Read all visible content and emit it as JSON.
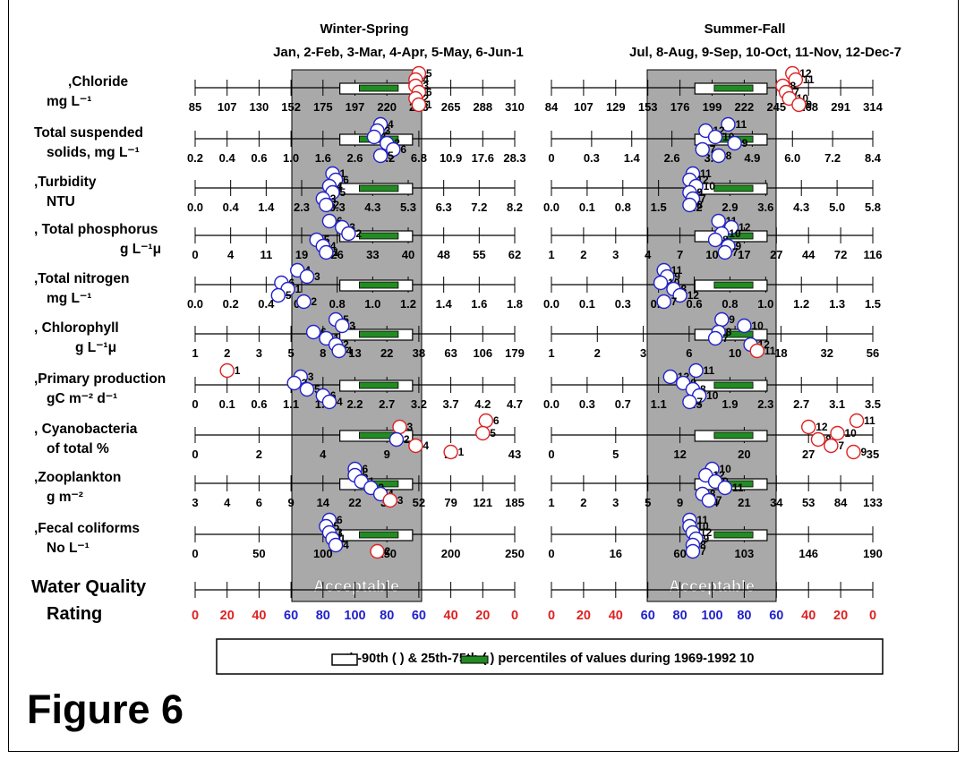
{
  "headers": {
    "left_title": "Winter-Spring",
    "left_months": "Jan, 2-Feb, 3-Mar, 4-Apr, 5-May, 6-Jun-1",
    "right_title": "Summer-Fall",
    "right_months": "Jul, 8-Aug, 9-Sep, 10-Oct, 11-Nov, 12-Dec-7"
  },
  "figure_label": "Figure 6",
  "legend_text": "th-90th (      ) & 25th-75th (      ) percentiles of values during 1969-1992 10",
  "colors": {
    "grey_band": "#a9a9a9",
    "iqr_bar": "#228B22",
    "low_marker": "#2222cc",
    "high_marker": "#dd2222",
    "rating_red": "#dd2222",
    "rating_blue": "#2222cc"
  },
  "chart_data": {
    "type": "box-percentile-scale",
    "rows": [
      {
        "label1": ",Chloride",
        "label2": "mg L⁻¹",
        "left_ticks": [
          "85",
          "107",
          "130",
          "152",
          "175",
          "197",
          "220",
          "243",
          "265",
          "288",
          "310"
        ],
        "right_ticks": [
          "84",
          "107",
          "129",
          "153",
          "176",
          "199",
          "222",
          "245",
          "268",
          "291",
          "314"
        ],
        "left_markers": [
          {
            "m": "5",
            "v": 0.7,
            "c": "red"
          },
          {
            "m": "4",
            "v": 0.69,
            "c": "red"
          },
          {
            "m": "3",
            "v": 0.69,
            "c": "red"
          },
          {
            "m": "6",
            "v": 0.7,
            "c": "red"
          },
          {
            "m": "2",
            "v": 0.69,
            "c": "red"
          },
          {
            "m": "1",
            "v": 0.7,
            "c": "red"
          }
        ],
        "right_markers": [
          {
            "m": "12",
            "v": 0.75,
            "c": "red"
          },
          {
            "m": "11",
            "v": 0.76,
            "c": "red"
          },
          {
            "m": "8",
            "v": 0.72,
            "c": "red"
          },
          {
            "m": "7",
            "v": 0.73,
            "c": "red"
          },
          {
            "m": "10",
            "v": 0.74,
            "c": "red"
          },
          {
            "m": "9",
            "v": 0.77,
            "c": "red"
          }
        ]
      },
      {
        "label1": "Total suspended",
        "label2": "solids, mg L⁻¹",
        "left_ticks": [
          "0.2",
          "0.4",
          "0.6",
          "1.0",
          "1.6",
          "2.6",
          "4.2",
          "6.8",
          "10.9",
          "17.6",
          "28.3"
        ],
        "right_ticks": [
          "0",
          "0.3",
          "1.4",
          "2.6",
          "3.7",
          "4.9",
          "6.0",
          "7.2",
          "8.4"
        ],
        "left_markers": [
          {
            "m": "4",
            "v": 0.58,
            "c": "blue"
          },
          {
            "m": "3",
            "v": 0.57,
            "c": "blue"
          },
          {
            "m": "1",
            "v": 0.56,
            "c": "blue"
          },
          {
            "m": "2",
            "v": 0.6,
            "c": "blue"
          },
          {
            "m": "6",
            "v": 0.62,
            "c": "blue"
          },
          {
            "m": "5",
            "v": 0.58,
            "c": "blue"
          }
        ],
        "right_markers": [
          {
            "m": "11",
            "v": 0.55,
            "c": "blue"
          },
          {
            "m": "12",
            "v": 0.48,
            "c": "blue"
          },
          {
            "m": "10",
            "v": 0.51,
            "c": "blue"
          },
          {
            "m": "9",
            "v": 0.57,
            "c": "blue"
          },
          {
            "m": "7",
            "v": 0.47,
            "c": "blue"
          },
          {
            "m": "8",
            "v": 0.52,
            "c": "blue"
          }
        ]
      },
      {
        "label1": ",Turbidity",
        "label2": "NTU",
        "left_ticks": [
          "0.0",
          "0.4",
          "1.4",
          "2.3",
          "3.3",
          "4.3",
          "5.3",
          "6.3",
          "7.2",
          "8.2"
        ],
        "right_ticks": [
          "0.0",
          "0.1",
          "0.8",
          "1.5",
          "2.2",
          "2.9",
          "3.6",
          "4.3",
          "5.0",
          "5.8"
        ],
        "left_markers": [
          {
            "m": "1",
            "v": 0.43,
            "c": "blue"
          },
          {
            "m": "6",
            "v": 0.44,
            "c": "blue"
          },
          {
            "m": "4",
            "v": 0.42,
            "c": "blue"
          },
          {
            "m": "5",
            "v": 0.43,
            "c": "blue"
          },
          {
            "m": "3",
            "v": 0.4,
            "c": "blue"
          },
          {
            "m": "2",
            "v": 0.41,
            "c": "blue"
          }
        ],
        "right_markers": [
          {
            "m": "11",
            "v": 0.44,
            "c": "blue"
          },
          {
            "m": "12",
            "v": 0.43,
            "c": "blue"
          },
          {
            "m": "10",
            "v": 0.45,
            "c": "blue"
          },
          {
            "m": "9",
            "v": 0.43,
            "c": "blue"
          },
          {
            "m": "7",
            "v": 0.44,
            "c": "blue"
          },
          {
            "m": "8",
            "v": 0.43,
            "c": "blue"
          }
        ]
      },
      {
        "label1": ", Total phosphorus",
        "label2": "g L⁻¹μ",
        "left_ticks": [
          "0",
          "4",
          "11",
          "19",
          "26",
          "33",
          "40",
          "48",
          "55",
          "62"
        ],
        "right_ticks": [
          "1",
          "2",
          "3",
          "4",
          "7",
          "10",
          "17",
          "27",
          "44",
          "72",
          "116"
        ],
        "left_markers": [
          {
            "m": "6",
            "v": 0.42,
            "c": "blue"
          },
          {
            "m": "3",
            "v": 0.46,
            "c": "blue"
          },
          {
            "m": "2",
            "v": 0.48,
            "c": "blue"
          },
          {
            "m": "5",
            "v": 0.38,
            "c": "blue"
          },
          {
            "m": "4",
            "v": 0.4,
            "c": "blue"
          },
          {
            "m": "1",
            "v": 0.41,
            "c": "blue"
          }
        ],
        "right_markers": [
          {
            "m": "11",
            "v": 0.52,
            "c": "blue"
          },
          {
            "m": "12",
            "v": 0.56,
            "c": "blue"
          },
          {
            "m": "10",
            "v": 0.53,
            "c": "blue"
          },
          {
            "m": "8",
            "v": 0.51,
            "c": "blue"
          },
          {
            "m": "9",
            "v": 0.55,
            "c": "blue"
          },
          {
            "m": "7",
            "v": 0.54,
            "c": "blue"
          }
        ]
      },
      {
        "label1": ",Total nitrogen",
        "label2": "mg L⁻¹",
        "left_ticks": [
          "0.0",
          "0.2",
          "0.4",
          "0.6",
          "0.8",
          "1.0",
          "1.2",
          "1.4",
          "1.6",
          "1.8"
        ],
        "right_ticks": [
          "0.0",
          "0.1",
          "0.3",
          "0.4",
          "0.6",
          "0.8",
          "1.0",
          "1.2",
          "1.3",
          "1.5"
        ],
        "left_markers": [
          {
            "m": "4",
            "v": 0.32,
            "c": "blue"
          },
          {
            "m": "3",
            "v": 0.35,
            "c": "blue"
          },
          {
            "m": "6",
            "v": 0.27,
            "c": "blue"
          },
          {
            "m": "1",
            "v": 0.29,
            "c": "blue"
          },
          {
            "m": "5",
            "v": 0.26,
            "c": "blue"
          },
          {
            "m": "2",
            "v": 0.34,
            "c": "blue"
          }
        ],
        "right_markers": [
          {
            "m": "11",
            "v": 0.35,
            "c": "blue"
          },
          {
            "m": "9",
            "v": 0.36,
            "c": "blue"
          },
          {
            "m": "10",
            "v": 0.34,
            "c": "blue"
          },
          {
            "m": "8",
            "v": 0.38,
            "c": "blue"
          },
          {
            "m": "12",
            "v": 0.4,
            "c": "blue"
          },
          {
            "m": "7",
            "v": 0.35,
            "c": "blue"
          }
        ]
      },
      {
        "label1": ", Chlorophyll",
        "label2": "g L⁻¹μ",
        "left_ticks": [
          "1",
          "2",
          "3",
          "5",
          "8",
          "13",
          "22",
          "38",
          "63",
          "106",
          "179"
        ],
        "right_ticks": [
          "1",
          "2",
          "3",
          "6",
          "10",
          "18",
          "32",
          "56"
        ],
        "left_markers": [
          {
            "m": "5",
            "v": 0.44,
            "c": "blue"
          },
          {
            "m": "3",
            "v": 0.46,
            "c": "blue"
          },
          {
            "m": "6",
            "v": 0.37,
            "c": "blue"
          },
          {
            "m": "1",
            "v": 0.41,
            "c": "blue"
          },
          {
            "m": "2",
            "v": 0.44,
            "c": "blue"
          },
          {
            "m": "4",
            "v": 0.45,
            "c": "blue"
          }
        ],
        "right_markers": [
          {
            "m": "9",
            "v": 0.53,
            "c": "blue"
          },
          {
            "m": "10",
            "v": 0.6,
            "c": "blue"
          },
          {
            "m": "8",
            "v": 0.52,
            "c": "blue"
          },
          {
            "m": "7",
            "v": 0.51,
            "c": "blue"
          },
          {
            "m": "12",
            "v": 0.62,
            "c": "blue"
          },
          {
            "m": "11",
            "v": 0.64,
            "c": "red"
          }
        ]
      },
      {
        "label1": ",Primary production",
        "label2": "gC m⁻² d⁻¹",
        "left_ticks": [
          "0",
          "0.1",
          "0.6",
          "1.1",
          "1.6",
          "2.2",
          "2.7",
          "3.2",
          "3.7",
          "4.2",
          "4.7"
        ],
        "right_ticks": [
          "0.0",
          "0.3",
          "0.7",
          "1.1",
          "1.5",
          "1.9",
          "2.3",
          "2.7",
          "3.1",
          "3.5"
        ],
        "left_markers": [
          {
            "m": "1",
            "v": 0.1,
            "c": "red"
          },
          {
            "m": "3",
            "v": 0.33,
            "c": "blue"
          },
          {
            "m": "2",
            "v": 0.31,
            "c": "blue"
          },
          {
            "m": "5",
            "v": 0.35,
            "c": "blue"
          },
          {
            "m": "6",
            "v": 0.4,
            "c": "blue"
          },
          {
            "m": "4",
            "v": 0.42,
            "c": "blue"
          }
        ],
        "right_markers": [
          {
            "m": "11",
            "v": 0.45,
            "c": "blue"
          },
          {
            "m": "12",
            "v": 0.37,
            "c": "blue"
          },
          {
            "m": "9",
            "v": 0.41,
            "c": "blue"
          },
          {
            "m": "8",
            "v": 0.44,
            "c": "blue"
          },
          {
            "m": "10",
            "v": 0.46,
            "c": "blue"
          },
          {
            "m": "7",
            "v": 0.43,
            "c": "blue"
          }
        ]
      },
      {
        "label1": ", Cyanobacteria",
        "label2": "of total  %",
        "left_ticks": [
          "0",
          "2",
          "4",
          "9",
          "20",
          "43"
        ],
        "right_ticks": [
          "0",
          "5",
          "12",
          "20",
          "27",
          "35"
        ],
        "left_markers": [
          {
            "m": "6",
            "v": 0.91,
            "c": "red"
          },
          {
            "m": "3",
            "v": 0.64,
            "c": "red"
          },
          {
            "m": "5",
            "v": 0.9,
            "c": "red"
          },
          {
            "m": "2",
            "v": 0.63,
            "c": "blue"
          },
          {
            "m": "4",
            "v": 0.69,
            "c": "red"
          },
          {
            "m": "1",
            "v": 0.8,
            "c": "red"
          }
        ],
        "right_markers": [
          {
            "m": "11",
            "v": 0.95,
            "c": "red"
          },
          {
            "m": "12",
            "v": 0.8,
            "c": "red"
          },
          {
            "m": "10",
            "v": 0.89,
            "c": "red"
          },
          {
            "m": "8",
            "v": 0.83,
            "c": "red"
          },
          {
            "m": "7",
            "v": 0.87,
            "c": "red"
          },
          {
            "m": "9",
            "v": 0.94,
            "c": "red"
          }
        ]
      },
      {
        "label1": ",Zooplankton",
        "label2": "g m⁻²",
        "left_ticks": [
          "3",
          "4",
          "6",
          "9",
          "14",
          "22",
          "34",
          "52",
          "79",
          "121",
          "185"
        ],
        "right_ticks": [
          "1",
          "2",
          "3",
          "5",
          "9",
          "14",
          "21",
          "34",
          "53",
          "84",
          "133"
        ],
        "left_markers": [
          {
            "m": "6",
            "v": 0.5,
            "c": "blue"
          },
          {
            "m": "5",
            "v": 0.5,
            "c": "blue"
          },
          {
            "m": "1",
            "v": 0.52,
            "c": "blue"
          },
          {
            "m": "2",
            "v": 0.55,
            "c": "blue"
          },
          {
            "m": "4",
            "v": 0.58,
            "c": "blue"
          },
          {
            "m": "3",
            "v": 0.61,
            "c": "red"
          }
        ],
        "right_markers": [
          {
            "m": "10",
            "v": 0.5,
            "c": "blue"
          },
          {
            "m": "12",
            "v": 0.48,
            "c": "blue"
          },
          {
            "m": "9",
            "v": 0.51,
            "c": "blue"
          },
          {
            "m": "11",
            "v": 0.54,
            "c": "blue"
          },
          {
            "m": "8",
            "v": 0.47,
            "c": "blue"
          },
          {
            "m": "7",
            "v": 0.49,
            "c": "blue"
          }
        ]
      },
      {
        "label1": ",Fecal coliforms",
        "label2": "No L⁻¹",
        "left_ticks": [
          "0",
          "50",
          "100",
          "150",
          "200",
          "250"
        ],
        "right_ticks": [
          "0",
          "16",
          "60",
          "103",
          "146",
          "190"
        ],
        "left_markers": [
          {
            "m": "6",
            "v": 0.42,
            "c": "blue"
          },
          {
            "m": "5",
            "v": 0.41,
            "c": "blue"
          },
          {
            "m": "3",
            "v": 0.42,
            "c": "blue"
          },
          {
            "m": "1",
            "v": 0.43,
            "c": "blue"
          },
          {
            "m": "4",
            "v": 0.44,
            "c": "blue"
          },
          {
            "m": "2",
            "v": 0.57,
            "c": "red"
          }
        ],
        "right_markers": [
          {
            "m": "11",
            "v": 0.43,
            "c": "blue"
          },
          {
            "m": "10",
            "v": 0.43,
            "c": "blue"
          },
          {
            "m": "12",
            "v": 0.44,
            "c": "blue"
          },
          {
            "m": "9",
            "v": 0.45,
            "c": "blue"
          },
          {
            "m": "8",
            "v": 0.44,
            "c": "blue"
          },
          {
            "m": "7",
            "v": 0.44,
            "c": "blue"
          }
        ]
      }
    ],
    "rating": {
      "label1": "Water Quality",
      "label2": "Rating",
      "band_text": "Acceptable",
      "ticks": [
        "0",
        "20",
        "40",
        "60",
        "80",
        "100",
        "80",
        "60",
        "40",
        "20",
        "0"
      ],
      "tick_colors": [
        "red",
        "red",
        "red",
        "blue",
        "blue",
        "blue",
        "blue",
        "blue",
        "red",
        "red",
        "red"
      ]
    }
  }
}
